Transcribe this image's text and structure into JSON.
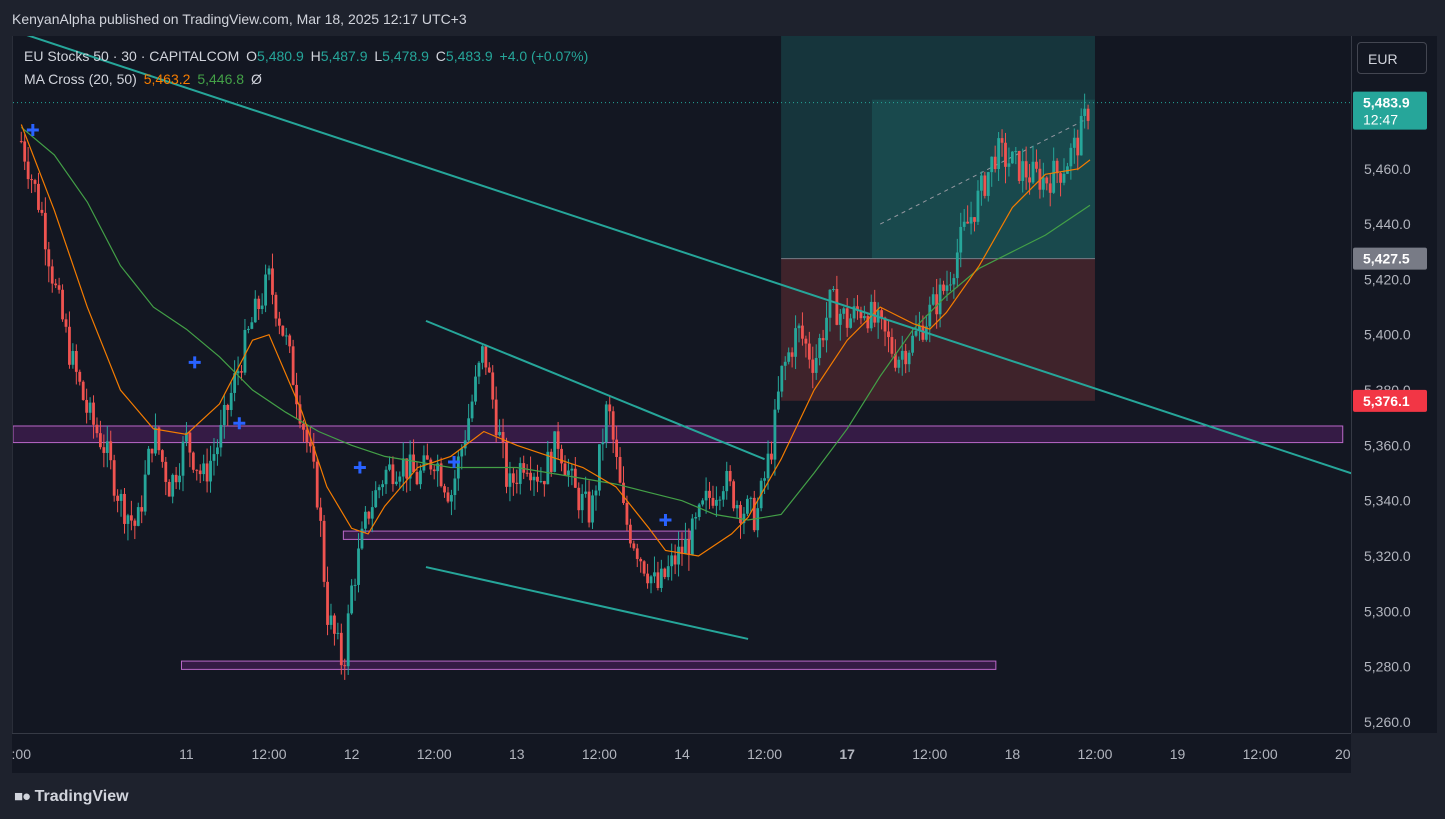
{
  "header": {
    "published": "KenyanAlpha published on TradingView.com, Mar 18, 2025 12:17 UTC+3"
  },
  "legend": {
    "symbol": "EU Stocks 50 · 30 · CAPITALCOM",
    "o_label": "O",
    "o": "5,480.9",
    "h_label": "H",
    "h": "5,487.9",
    "l_label": "L",
    "l": "5,478.9",
    "c_label": "C",
    "c": "5,483.9",
    "change": "+4.0 (+0.07%)",
    "indicator": "MA Cross (20, 50)",
    "ma20": "5,463.2",
    "ma50": "5,446.8",
    "null_symbol": "Ø"
  },
  "currency_button": "EUR",
  "footer": {
    "brand": "TradingView"
  },
  "colors": {
    "up": "#26a69a",
    "down": "#ef5350",
    "ma20": "#f57c00",
    "ma50": "#43a047",
    "trendline": "#26a69a",
    "zone": "#9c27b0",
    "cross": "#2962ff"
  },
  "chart_data": {
    "type": "candlestick",
    "title": "EU Stocks 50 · 30 · CAPITALCOM",
    "ylim": [
      5256,
      5508
    ],
    "y_ticks": [
      5260,
      5280,
      5300,
      5320,
      5340,
      5360,
      5380,
      5400,
      5420,
      5440,
      5460
    ],
    "y_tick_labels": [
      "5,260.0",
      "5,280.0",
      "5,300.0",
      "5,320.0",
      "5,340.0",
      "5,360.0",
      "5,380.0",
      "5,400.0",
      "5,420.0",
      "5,440.0",
      "5,460.0"
    ],
    "x_ticks": [
      {
        "label": ":00",
        "t": 0
      },
      {
        "label": "11",
        "t": 1
      },
      {
        "label": "12:00",
        "t": 1.5
      },
      {
        "label": "12",
        "t": 2
      },
      {
        "label": "12:00",
        "t": 2.5
      },
      {
        "label": "13",
        "t": 3
      },
      {
        "label": "12:00",
        "t": 3.5
      },
      {
        "label": "14",
        "t": 4
      },
      {
        "label": "12:00",
        "t": 4.5
      },
      {
        "label": "17",
        "t": 5
      },
      {
        "label": "12:00",
        "t": 5.5
      },
      {
        "label": "18",
        "t": 6
      },
      {
        "label": "12:00",
        "t": 6.5
      },
      {
        "label": "19",
        "t": 7
      },
      {
        "label": "12:00",
        "t": 7.5
      },
      {
        "label": "20",
        "t": 8
      }
    ],
    "close_path": [
      [
        0.0,
        5470
      ],
      [
        0.12,
        5445
      ],
      [
        0.2,
        5418
      ],
      [
        0.3,
        5392
      ],
      [
        0.4,
        5372
      ],
      [
        0.5,
        5360
      ],
      [
        0.6,
        5340
      ],
      [
        0.7,
        5330
      ],
      [
        0.8,
        5365
      ],
      [
        0.9,
        5345
      ],
      [
        1.0,
        5362
      ],
      [
        1.1,
        5348
      ],
      [
        1.2,
        5362
      ],
      [
        1.3,
        5385
      ],
      [
        1.4,
        5405
      ],
      [
        1.5,
        5420
      ],
      [
        1.6,
        5398
      ],
      [
        1.7,
        5370
      ],
      [
        1.8,
        5340
      ],
      [
        1.85,
        5300
      ],
      [
        1.95,
        5280
      ],
      [
        2.0,
        5308
      ],
      [
        2.1,
        5336
      ],
      [
        2.2,
        5350
      ],
      [
        2.3,
        5354
      ],
      [
        2.4,
        5348
      ],
      [
        2.5,
        5356
      ],
      [
        2.6,
        5342
      ],
      [
        2.7,
        5368
      ],
      [
        2.8,
        5395
      ],
      [
        2.85,
        5378
      ],
      [
        2.95,
        5344
      ],
      [
        3.05,
        5356
      ],
      [
        3.15,
        5348
      ],
      [
        3.25,
        5362
      ],
      [
        3.35,
        5343
      ],
      [
        3.45,
        5335
      ],
      [
        3.55,
        5375
      ],
      [
        3.65,
        5334
      ],
      [
        3.75,
        5320
      ],
      [
        3.85,
        5308
      ],
      [
        3.95,
        5318
      ],
      [
        4.05,
        5326
      ],
      [
        4.15,
        5340
      ],
      [
        4.25,
        5348
      ],
      [
        4.35,
        5338
      ],
      [
        4.45,
        5334
      ],
      [
        4.55,
        5362
      ],
      [
        4.6,
        5385
      ],
      [
        4.7,
        5402
      ],
      [
        4.8,
        5390
      ],
      [
        4.9,
        5412
      ],
      [
        5.0,
        5405
      ],
      [
        5.1,
        5410
      ],
      [
        5.2,
        5402
      ],
      [
        5.3,
        5392
      ],
      [
        5.4,
        5398
      ],
      [
        5.5,
        5408
      ],
      [
        5.6,
        5418
      ],
      [
        5.7,
        5436
      ],
      [
        5.8,
        5450
      ],
      [
        5.9,
        5466
      ],
      [
        6.0,
        5462
      ],
      [
        6.1,
        5458
      ],
      [
        6.2,
        5456
      ],
      [
        6.3,
        5460
      ],
      [
        6.4,
        5470
      ],
      [
        6.47,
        5483.9
      ]
    ],
    "ma20_path": [
      [
        0.0,
        5476
      ],
      [
        0.2,
        5445
      ],
      [
        0.4,
        5410
      ],
      [
        0.6,
        5380
      ],
      [
        0.8,
        5366
      ],
      [
        1.0,
        5364
      ],
      [
        1.2,
        5375
      ],
      [
        1.4,
        5398
      ],
      [
        1.5,
        5400
      ],
      [
        1.7,
        5372
      ],
      [
        1.85,
        5345
      ],
      [
        2.0,
        5330
      ],
      [
        2.1,
        5328
      ],
      [
        2.2,
        5338
      ],
      [
        2.4,
        5352
      ],
      [
        2.6,
        5356
      ],
      [
        2.8,
        5365
      ],
      [
        3.0,
        5360
      ],
      [
        3.2,
        5356
      ],
      [
        3.4,
        5352
      ],
      [
        3.6,
        5345
      ],
      [
        3.8,
        5330
      ],
      [
        3.9,
        5322
      ],
      [
        4.1,
        5320
      ],
      [
        4.3,
        5328
      ],
      [
        4.4,
        5334
      ],
      [
        4.6,
        5355
      ],
      [
        4.8,
        5380
      ],
      [
        5.0,
        5398
      ],
      [
        5.2,
        5410
      ],
      [
        5.4,
        5404
      ],
      [
        5.5,
        5402
      ],
      [
        5.6,
        5408
      ],
      [
        5.8,
        5425
      ],
      [
        6.0,
        5446
      ],
      [
        6.2,
        5458
      ],
      [
        6.4,
        5460
      ],
      [
        6.47,
        5463.2
      ]
    ],
    "ma50_path": [
      [
        0.0,
        5475
      ],
      [
        0.2,
        5465
      ],
      [
        0.4,
        5448
      ],
      [
        0.6,
        5425
      ],
      [
        0.8,
        5410
      ],
      [
        1.0,
        5402
      ],
      [
        1.2,
        5392
      ],
      [
        1.4,
        5380
      ],
      [
        1.6,
        5372
      ],
      [
        1.8,
        5365
      ],
      [
        2.0,
        5360
      ],
      [
        2.2,
        5356
      ],
      [
        2.4,
        5354
      ],
      [
        2.6,
        5352
      ],
      [
        2.8,
        5352
      ],
      [
        3.0,
        5352
      ],
      [
        3.2,
        5350
      ],
      [
        3.4,
        5348
      ],
      [
        3.6,
        5346
      ],
      [
        3.8,
        5343
      ],
      [
        4.0,
        5340
      ],
      [
        4.2,
        5335
      ],
      [
        4.4,
        5333
      ],
      [
        4.6,
        5335
      ],
      [
        4.8,
        5350
      ],
      [
        5.0,
        5366
      ],
      [
        5.2,
        5385
      ],
      [
        5.4,
        5402
      ],
      [
        5.6,
        5414
      ],
      [
        5.8,
        5424
      ],
      [
        6.0,
        5430
      ],
      [
        6.2,
        5436
      ],
      [
        6.4,
        5444
      ],
      [
        6.47,
        5446.8
      ]
    ],
    "trendlines": [
      {
        "name": "main-downtrend",
        "points": [
          [
            -0.05,
            5510
          ],
          [
            8.3,
            5345
          ]
        ]
      },
      {
        "name": "channel-upper",
        "points": [
          [
            2.45,
            5405
          ],
          [
            4.5,
            5355
          ]
        ]
      },
      {
        "name": "channel-lower",
        "points": [
          [
            2.45,
            5316
          ],
          [
            4.4,
            5290
          ]
        ]
      }
    ],
    "zones": [
      {
        "name": "resistance-zone",
        "x0": -0.05,
        "x1": 8.0,
        "y0": 5361,
        "y1": 5367
      },
      {
        "name": "mid-support",
        "x0": 1.95,
        "x1": 4.05,
        "y0": 5326,
        "y1": 5329
      },
      {
        "name": "low-support",
        "x0": 0.97,
        "x1": 5.9,
        "y0": 5279,
        "y1": 5282
      }
    ],
    "position": {
      "entry": 5427.5,
      "target": 5512,
      "stop": 5376.1,
      "x0": 4.6,
      "x1": 6.5,
      "fill_x0": 5.15
    },
    "cross_markers": [
      [
        0.07,
        5474
      ],
      [
        1.05,
        5390
      ],
      [
        1.32,
        5368
      ],
      [
        2.05,
        5352
      ],
      [
        2.62,
        5354
      ],
      [
        3.9,
        5333
      ]
    ],
    "price_labels": [
      {
        "value": 5483.9,
        "text": "5,483.9",
        "sub": "12:47",
        "color": "#26a69a"
      },
      {
        "value": 5427.5,
        "text": "5,427.5",
        "color": "#787b86"
      },
      {
        "value": 5376.1,
        "text": "5,376.1",
        "color": "#f23645"
      }
    ]
  }
}
